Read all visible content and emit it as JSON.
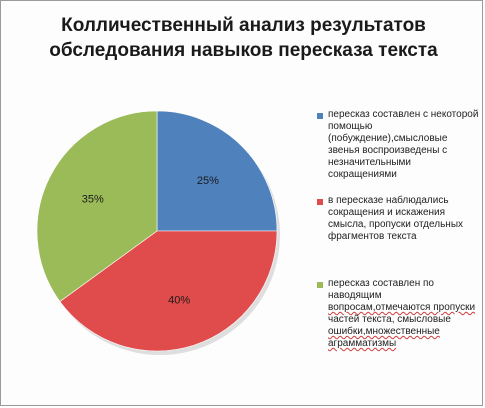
{
  "title_lines": [
    "Колличественный  анализ результатов",
    "обследования  навыков  пересказа текста"
  ],
  "colors": {
    "blue": "#4f81bd",
    "red": "#e04b4b",
    "green": "#9bbb59"
  },
  "chart_data": {
    "type": "pie",
    "title": "Колличественный  анализ результатов обследования  навыков  пересказа текста",
    "slices": [
      {
        "name": "пересказ составлен с некоторой помощью (побуждение),смысловые звенья воспроизведены с незначительными сокращениями",
        "value": 25,
        "label": "25%",
        "color": "#4f81bd"
      },
      {
        "name": "в пересказе наблюдались сокращения и искажения смысла, пропуски отдельных фрагментов текста",
        "value": 40,
        "label": "40%",
        "color": "#e04b4b"
      },
      {
        "name": "пересказ составлен по наводящим вопросам,отмечаются пропуски частей текста, смысловые ошибки,множественные аграмматизмы",
        "value": 35,
        "label": "35%",
        "color": "#9bbb59"
      }
    ],
    "legend_position": "right"
  },
  "legend": [
    {
      "lines": [
        "пересказ составлен с некоторой",
        "помощью",
        "(побуждение),смысловые",
        "звенья воспроизведены с",
        "незначительными",
        "сокращениями"
      ]
    },
    {
      "lines": [
        "в пересказе наблюдались",
        "сокращения и искажения",
        "смысла, пропуски отдельных",
        "фрагментов текста"
      ]
    },
    {
      "lines": [
        "пересказ составлен по",
        "наводящим",
        "вопросам,отмечаются пропуски",
        "частей текста, смысловые",
        "ошибки,множественные",
        "аграмматизмы"
      ]
    }
  ]
}
